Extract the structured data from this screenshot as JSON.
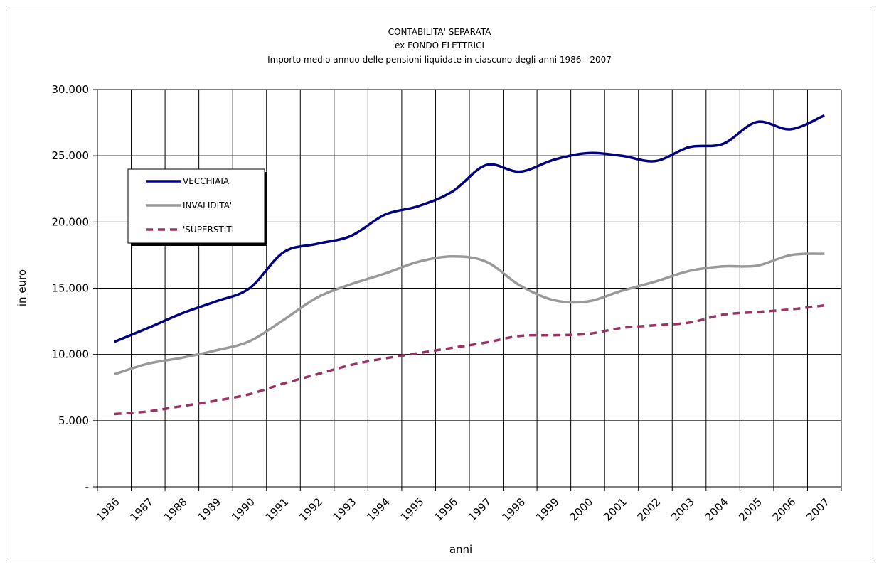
{
  "chart_data": {
    "type": "line",
    "title": [
      "CONTABILITA' SEPARATA",
      "ex FONDO ELETTRICI",
      "Importo medio annuo delle pensioni liquidate in ciascuno degli anni 1986 - 2007"
    ],
    "x_label": "anni",
    "y_label": "in euro",
    "categories": [
      "1986",
      "1987",
      "1988",
      "1989",
      "1990",
      "1991",
      "1992",
      "1993",
      "1994",
      "1995",
      "1996",
      "1997",
      "1998",
      "1999",
      "2000",
      "2001",
      "2002",
      "2003",
      "2004",
      "2005",
      "2006",
      "2007"
    ],
    "series": [
      {
        "name": "VECCHIAIA",
        "color": "#000080",
        "dash": false,
        "values": [
          10950,
          12000,
          13100,
          14000,
          15000,
          17700,
          18350,
          18950,
          20550,
          21200,
          22300,
          24300,
          23800,
          24700,
          25200,
          25000,
          24600,
          25650,
          25900,
          27550,
          27000,
          28050
        ]
      },
      {
        "name": "INVALIDITA'",
        "color": "#999999",
        "dash": false,
        "values": [
          8500,
          9300,
          9750,
          10300,
          11000,
          12600,
          14300,
          15300,
          16100,
          17000,
          17400,
          17000,
          15200,
          14100,
          14000,
          14800,
          15500,
          16300,
          16650,
          16700,
          17500,
          17600
        ]
      },
      {
        "name": "'SUPERSTITI",
        "color": "#993366",
        "dash": true,
        "values": [
          5500,
          5700,
          6100,
          6500,
          7000,
          7800,
          8500,
          9200,
          9700,
          10100,
          10500,
          10900,
          11400,
          11450,
          11550,
          12000,
          12200,
          12400,
          13000,
          13200,
          13400,
          13700
        ]
      }
    ],
    "ylim": [
      0,
      30000
    ],
    "yticks": [
      {
        "value": 0,
        "label": "-"
      },
      {
        "value": 5000,
        "label": "5.000"
      },
      {
        "value": 10000,
        "label": "10.000"
      },
      {
        "value": 15000,
        "label": "15.000"
      },
      {
        "value": 20000,
        "label": "20.000"
      },
      {
        "value": 25000,
        "label": "25.000"
      },
      {
        "value": 30000,
        "label": "30.000"
      }
    ],
    "grid": true,
    "smooth": true,
    "legend": "upper left"
  }
}
